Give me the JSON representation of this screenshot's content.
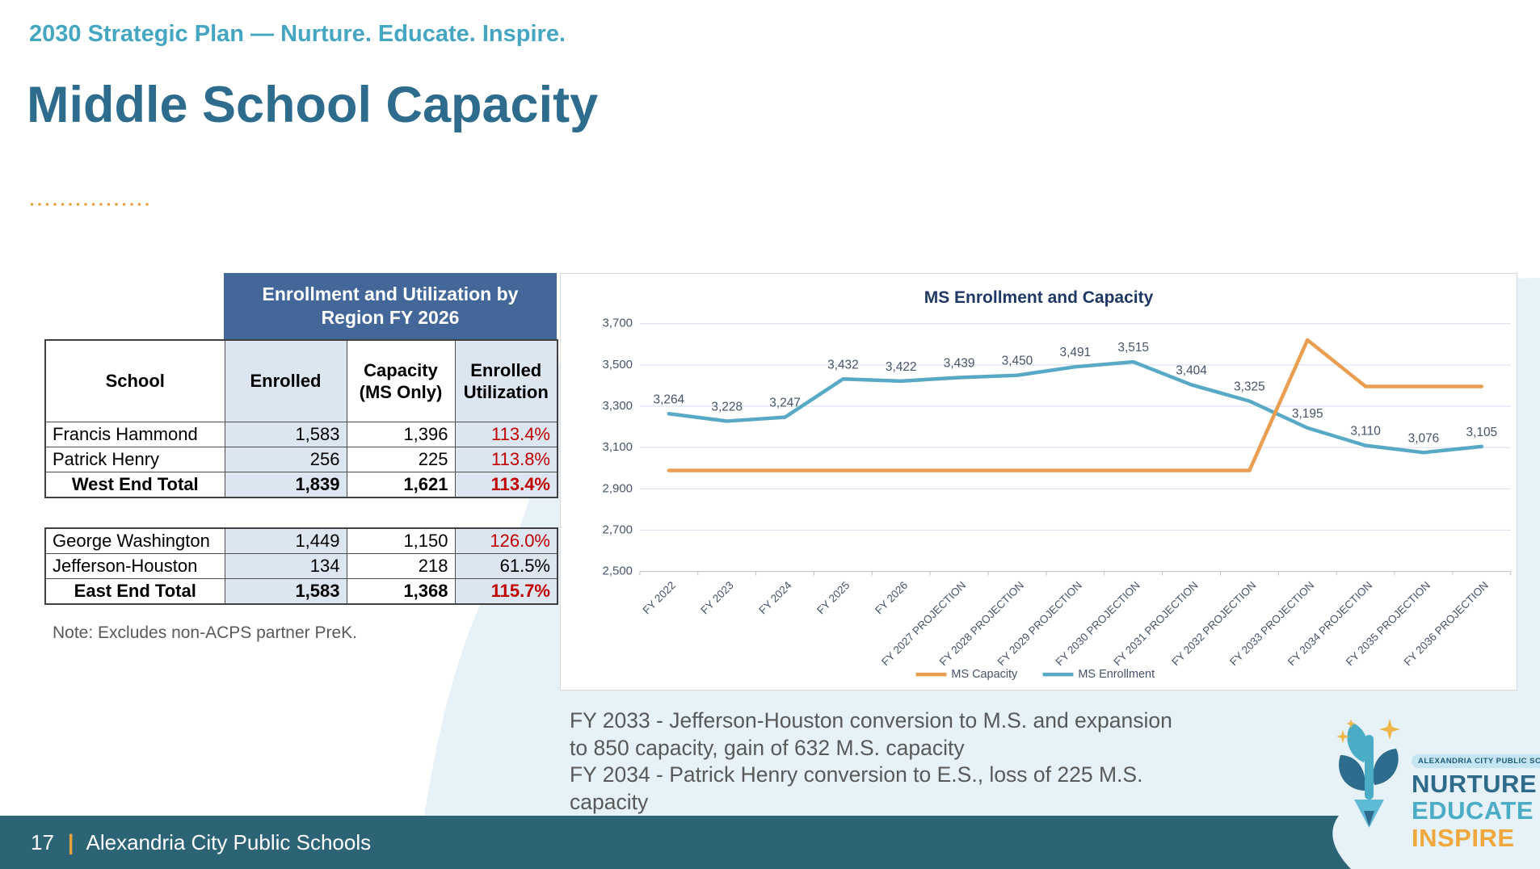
{
  "header": {
    "eyebrow": "2030 Strategic Plan — Nurture. Educate. Inspire.",
    "title": "Middle School Capacity"
  },
  "table": {
    "banner": "Enrollment and Utilization by Region FY 2026",
    "columns": [
      "School",
      "Enrolled",
      "Capacity (MS Only)",
      "Enrolled Utilization"
    ],
    "west_rows": [
      {
        "school": "Francis Hammond",
        "enrolled": "1,583",
        "capacity": "1,396",
        "utilization": "113.4%",
        "over_capacity": true,
        "is_total": false
      },
      {
        "school": "Patrick Henry",
        "enrolled": "256",
        "capacity": "225",
        "utilization": "113.8%",
        "over_capacity": true,
        "is_total": false
      },
      {
        "school": "West End Total",
        "enrolled": "1,839",
        "capacity": "1,621",
        "utilization": "113.4%",
        "over_capacity": true,
        "is_total": true
      }
    ],
    "east_rows": [
      {
        "school": "George Washington",
        "enrolled": "1,449",
        "capacity": "1,150",
        "utilization": "126.0%",
        "over_capacity": true,
        "is_total": false
      },
      {
        "school": "Jefferson-Houston",
        "enrolled": "134",
        "capacity": "218",
        "utilization": "61.5%",
        "over_capacity": false,
        "is_total": false
      },
      {
        "school": "East End Total",
        "enrolled": "1,583",
        "capacity": "1,368",
        "utilization": "115.7%",
        "over_capacity": true,
        "is_total": true
      }
    ],
    "note": "Note: Excludes non-ACPS partner PreK."
  },
  "chart_data": {
    "type": "line",
    "title": "MS Enrollment and Capacity",
    "categories": [
      "FY 2022",
      "FY 2023",
      "FY 2024",
      "FY 2025",
      "FY 2026",
      "FY 2027 PROJECTION",
      "FY 2028 PROJECTION",
      "FY 2029 PROJECTION",
      "FY 2030 PROJECTION",
      "FY 2031 PROJECTION",
      "FY 2032 PROJECTION",
      "FY 2033 PROJECTION",
      "FY 2034 PROJECTION",
      "FY 2035 PROJECTION",
      "FY 2036 PROJECTION"
    ],
    "series": [
      {
        "name": "MS Capacity",
        "color": "#EA9F50",
        "show_labels": false,
        "values": [
          2989,
          2989,
          2989,
          2989,
          2989,
          2989,
          2989,
          2989,
          2989,
          2989,
          2989,
          3621,
          3396,
          3396,
          3396
        ]
      },
      {
        "name": "MS Enrollment",
        "color": "#57A9C6",
        "show_labels": true,
        "values": [
          3264,
          3228,
          3247,
          3432,
          3422,
          3439,
          3450,
          3491,
          3515,
          3404,
          3325,
          3195,
          3110,
          3076,
          3105
        ]
      }
    ],
    "ylim": [
      2500,
      3700
    ],
    "yticks": [
      2500,
      2700,
      2900,
      3100,
      3300,
      3500,
      3700
    ],
    "grid": true,
    "legend_position": "bottom"
  },
  "annotations": [
    "FY 2033 - Jefferson-Houston conversion to M.S. and expansion to 850 capacity, gain of 632 M.S. capacity",
    "FY 2034 - Patrick Henry conversion to E.S., loss of 225 M.S. capacity"
  ],
  "footer": {
    "page_number": "17",
    "divider": "|",
    "org": "Alexandria City Public Schools"
  },
  "logo": {
    "district": "ALEXANDRIA CITY PUBLIC SCHOOLS",
    "words": [
      {
        "text": "NURTURE",
        "color": "#2E6B8A"
      },
      {
        "text": "EDUCATE",
        "color": "#4BACC6"
      },
      {
        "text": "INSPIRE",
        "color": "#F0A73C"
      }
    ]
  },
  "colors": {
    "accent_teal": "#44A6C1",
    "title_blue": "#2E6C8E",
    "banner_blue": "#44679A",
    "cell_shade": "#DCE6F1",
    "utilization_red": "#C00000",
    "footer_teal": "#2C6476",
    "gold": "#E9A23B",
    "swoosh": "#E6F2F8",
    "chart_navy": "#1F3864",
    "axis_text": "#44546A"
  }
}
